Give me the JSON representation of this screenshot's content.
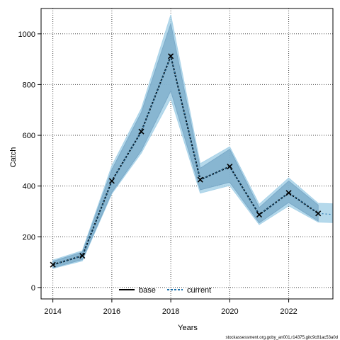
{
  "chart_data": {
    "type": "line",
    "xlabel": "Years",
    "ylabel": "Catch",
    "xlim": [
      2013.6,
      2023.5
    ],
    "ylim": [
      -45,
      1100
    ],
    "grid": true,
    "legend_placement": "bottom-center",
    "x_ticks": [
      2014,
      2016,
      2018,
      2020,
      2022
    ],
    "y_ticks": [
      0,
      200,
      400,
      600,
      800,
      1000
    ],
    "x": [
      2014,
      2015,
      2016,
      2017,
      2018,
      2019,
      2020,
      2021,
      2022,
      2023
    ],
    "series": [
      {
        "name": "base",
        "values": [
          90,
          125,
          420,
          615,
          912,
          425,
          477,
          287,
          373,
          292
        ],
        "lower": [
          78,
          110,
          375,
          540,
          775,
          385,
          415,
          255,
          335,
          262
        ],
        "upper": [
          103,
          140,
          465,
          690,
          1040,
          470,
          545,
          315,
          420,
          325
        ],
        "line_color": "#000000",
        "band_color": "#7aa9c8"
      },
      {
        "name": "current",
        "values": [
          90,
          125,
          420,
          615,
          912,
          425,
          477,
          287,
          373,
          292,
          288
        ],
        "x": [
          2014,
          2015,
          2016,
          2017,
          2018,
          2019,
          2020,
          2021,
          2022,
          2023,
          2023.5
        ],
        "lower": [
          75,
          105,
          370,
          530,
          745,
          372,
          402,
          248,
          322,
          258,
          256
        ],
        "upper": [
          108,
          145,
          480,
          705,
          1075,
          488,
          555,
          328,
          432,
          332,
          330
        ],
        "line_color": "#1b6fa8",
        "band_color": "#a8d2e8"
      }
    ],
    "markers": "x"
  },
  "footer_text": "stockassessment.org,goby_an001,r14375,gitc9c81ac53a0d"
}
